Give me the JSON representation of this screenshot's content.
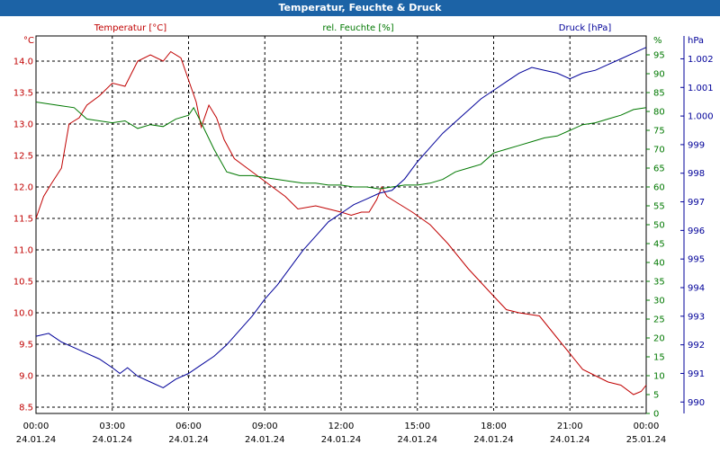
{
  "window": {
    "title": "Temperatur, Feuchte & Druck"
  },
  "colors": {
    "temperature": "#c00000",
    "humidity": "#007800",
    "pressure": "#000099",
    "grid": "#000000",
    "titlebar": "#1c63a6"
  },
  "chart_data": {
    "type": "line",
    "title": "Temperatur, Feuchte & Druck",
    "grid": true,
    "x_ticks": [
      {
        "time": "00:00",
        "date": "24.01.24"
      },
      {
        "time": "03:00",
        "date": "24.01.24"
      },
      {
        "time": "06:00",
        "date": "24.01.24"
      },
      {
        "time": "09:00",
        "date": "24.01.24"
      },
      {
        "time": "12:00",
        "date": "24.01.24"
      },
      {
        "time": "15:00",
        "date": "24.01.24"
      },
      {
        "time": "18:00",
        "date": "24.01.24"
      },
      {
        "time": "21:00",
        "date": "24.01.24"
      },
      {
        "time": "00:00",
        "date": "25.01.24"
      }
    ],
    "x_range_hours": [
      0,
      24
    ],
    "axes": {
      "temperature": {
        "unit": "°C",
        "min": 8.4,
        "max": 14.4,
        "ticks": [
          "8.5",
          "9.0",
          "9.5",
          "10.0",
          "10.5",
          "11.0",
          "11.5",
          "12.0",
          "12.5",
          "13.0",
          "13.5",
          "14.0"
        ]
      },
      "humidity": {
        "unit": "%",
        "min": 0,
        "max": 100,
        "ticks": [
          "0",
          "5",
          "10",
          "15",
          "20",
          "25",
          "30",
          "35",
          "40",
          "45",
          "50",
          "55",
          "60",
          "65",
          "70",
          "75",
          "80",
          "85",
          "90",
          "95"
        ]
      },
      "pressure": {
        "unit": "hPa",
        "min": 989.6,
        "max": 1002.8,
        "ticks": [
          "990",
          "991",
          "992",
          "993",
          "994",
          "995",
          "996",
          "997",
          "998",
          "999",
          "1.000",
          "1.001",
          "1.002"
        ]
      }
    },
    "series": [
      {
        "name": "Temperatur [°C]",
        "axis": "temperature",
        "points": [
          [
            0,
            11.5
          ],
          [
            0.3,
            11.85
          ],
          [
            0.6,
            12.05
          ],
          [
            1.0,
            12.3
          ],
          [
            1.3,
            13.0
          ],
          [
            1.7,
            13.1
          ],
          [
            2.0,
            13.3
          ],
          [
            2.5,
            13.45
          ],
          [
            3.0,
            13.65
          ],
          [
            3.5,
            13.6
          ],
          [
            4.0,
            14.0
          ],
          [
            4.5,
            14.1
          ],
          [
            5.0,
            14.0
          ],
          [
            5.3,
            14.15
          ],
          [
            5.7,
            14.05
          ],
          [
            6.0,
            13.7
          ],
          [
            6.3,
            13.35
          ],
          [
            6.5,
            12.95
          ],
          [
            6.8,
            13.3
          ],
          [
            7.1,
            13.1
          ],
          [
            7.4,
            12.75
          ],
          [
            7.8,
            12.45
          ],
          [
            8.3,
            12.3
          ],
          [
            8.8,
            12.15
          ],
          [
            9.3,
            12.0
          ],
          [
            9.8,
            11.85
          ],
          [
            10.3,
            11.65
          ],
          [
            11.0,
            11.7
          ],
          [
            11.5,
            11.65
          ],
          [
            12.0,
            11.6
          ],
          [
            12.4,
            11.55
          ],
          [
            12.8,
            11.6
          ],
          [
            13.1,
            11.6
          ],
          [
            13.4,
            11.8
          ],
          [
            13.6,
            12.0
          ],
          [
            13.8,
            11.85
          ],
          [
            14.2,
            11.75
          ],
          [
            14.8,
            11.6
          ],
          [
            15.5,
            11.4
          ],
          [
            16.2,
            11.1
          ],
          [
            17.0,
            10.7
          ],
          [
            17.8,
            10.35
          ],
          [
            18.5,
            10.05
          ],
          [
            19.0,
            10.0
          ],
          [
            19.8,
            9.95
          ],
          [
            20.5,
            9.6
          ],
          [
            21.0,
            9.35
          ],
          [
            21.5,
            9.1
          ],
          [
            22.0,
            9.0
          ],
          [
            22.5,
            8.9
          ],
          [
            23.0,
            8.85
          ],
          [
            23.5,
            8.7
          ],
          [
            23.8,
            8.75
          ],
          [
            24.0,
            8.85
          ]
        ]
      },
      {
        "name": "rel. Feuchte [%]",
        "axis": "humidity",
        "points": [
          [
            0,
            82.5
          ],
          [
            0.5,
            82
          ],
          [
            1.0,
            81.5
          ],
          [
            1.5,
            81
          ],
          [
            2.0,
            78
          ],
          [
            2.5,
            77.5
          ],
          [
            3.0,
            77
          ],
          [
            3.5,
            77.5
          ],
          [
            4.0,
            75.5
          ],
          [
            4.5,
            76.5
          ],
          [
            5.0,
            76
          ],
          [
            5.5,
            78
          ],
          [
            6.0,
            79
          ],
          [
            6.2,
            81
          ],
          [
            6.5,
            77
          ],
          [
            7.0,
            70
          ],
          [
            7.5,
            64
          ],
          [
            8.0,
            63
          ],
          [
            8.5,
            63
          ],
          [
            9.0,
            62.5
          ],
          [
            9.5,
            62
          ],
          [
            10.0,
            61.5
          ],
          [
            10.5,
            61
          ],
          [
            11.0,
            61
          ],
          [
            11.5,
            60.5
          ],
          [
            12.0,
            60.5
          ],
          [
            12.5,
            60
          ],
          [
            13.0,
            60
          ],
          [
            13.5,
            59.5
          ],
          [
            14.0,
            60
          ],
          [
            14.5,
            60.5
          ],
          [
            15.0,
            60.5
          ],
          [
            15.5,
            61
          ],
          [
            16.0,
            62
          ],
          [
            16.5,
            64
          ],
          [
            17.0,
            65
          ],
          [
            17.5,
            66
          ],
          [
            18.0,
            69
          ],
          [
            18.5,
            70
          ],
          [
            19.0,
            71
          ],
          [
            19.5,
            72
          ],
          [
            20.0,
            73
          ],
          [
            20.5,
            73.5
          ],
          [
            21.0,
            75
          ],
          [
            21.5,
            76.5
          ],
          [
            22.0,
            77
          ],
          [
            22.5,
            78
          ],
          [
            23.0,
            79
          ],
          [
            23.5,
            80.5
          ],
          [
            24.0,
            81
          ]
        ]
      },
      {
        "name": "Druck [hPa]",
        "axis": "pressure",
        "points": [
          [
            0,
            992.3
          ],
          [
            0.5,
            992.4
          ],
          [
            1.0,
            992.1
          ],
          [
            1.5,
            991.9
          ],
          [
            2.0,
            991.7
          ],
          [
            2.5,
            991.5
          ],
          [
            3.0,
            991.2
          ],
          [
            3.3,
            991.0
          ],
          [
            3.6,
            991.2
          ],
          [
            4.0,
            990.9
          ],
          [
            4.5,
            990.7
          ],
          [
            5.0,
            990.5
          ],
          [
            5.5,
            990.8
          ],
          [
            6.0,
            991.0
          ],
          [
            6.5,
            991.3
          ],
          [
            7.0,
            991.6
          ],
          [
            7.5,
            992.0
          ],
          [
            8.0,
            992.5
          ],
          [
            8.5,
            993.0
          ],
          [
            9.0,
            993.6
          ],
          [
            9.5,
            994.1
          ],
          [
            10.0,
            994.7
          ],
          [
            10.5,
            995.3
          ],
          [
            11.0,
            995.8
          ],
          [
            11.5,
            996.3
          ],
          [
            12.0,
            996.6
          ],
          [
            12.5,
            996.9
          ],
          [
            13.0,
            997.1
          ],
          [
            13.5,
            997.3
          ],
          [
            14.0,
            997.4
          ],
          [
            14.5,
            997.8
          ],
          [
            15.0,
            998.4
          ],
          [
            15.5,
            998.9
          ],
          [
            16.0,
            999.4
          ],
          [
            16.5,
            999.8
          ],
          [
            17.0,
            1000.2
          ],
          [
            17.5,
            1000.6
          ],
          [
            18.0,
            1000.9
          ],
          [
            18.5,
            1001.2
          ],
          [
            19.0,
            1001.5
          ],
          [
            19.5,
            1001.7
          ],
          [
            20.0,
            1001.6
          ],
          [
            20.5,
            1001.5
          ],
          [
            21.0,
            1001.3
          ],
          [
            21.5,
            1001.5
          ],
          [
            22.0,
            1001.6
          ],
          [
            22.5,
            1001.8
          ],
          [
            23.0,
            1002.0
          ],
          [
            23.5,
            1002.2
          ],
          [
            24.0,
            1002.4
          ]
        ]
      }
    ]
  }
}
